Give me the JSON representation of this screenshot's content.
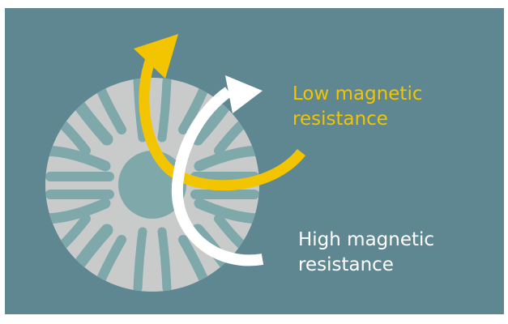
{
  "colors": {
    "background": "#5f8792",
    "rotor_steel": "#c9cbcb",
    "flux_barrier": "#7fa8aa",
    "low_resistance_arrow": "#f2c500",
    "high_resistance_arrow": "#ffffff"
  },
  "labels": {
    "low": {
      "line1": "Low magnetic",
      "line2": "resistance"
    },
    "high": {
      "line1": "High magnetic",
      "line2": "resistance"
    }
  }
}
